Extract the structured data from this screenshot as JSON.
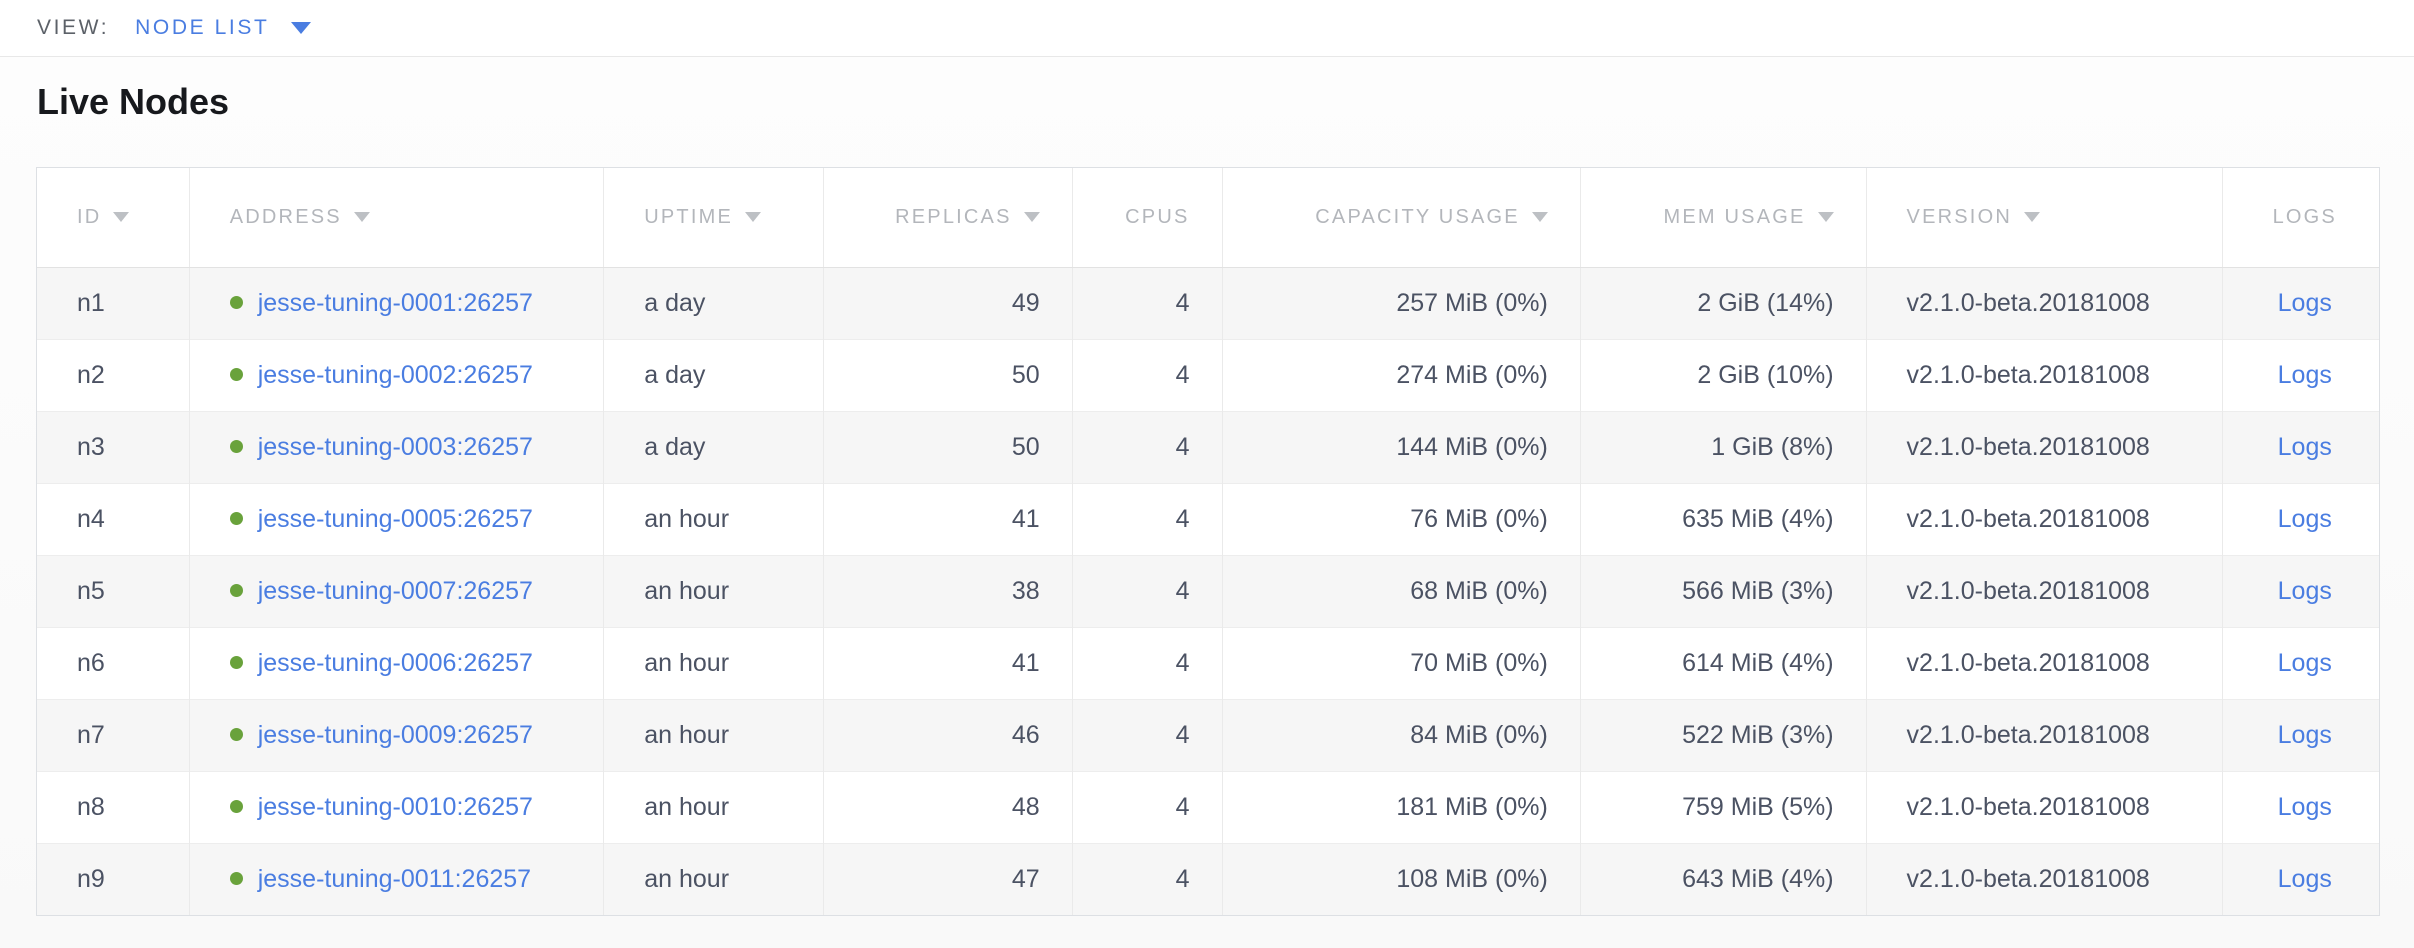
{
  "colors": {
    "accent_blue": "#4a7de1",
    "live_green": "#69a23b"
  },
  "view_bar": {
    "label": "VIEW:",
    "selected": "NODE LIST"
  },
  "page": {
    "title": "Live Nodes"
  },
  "table": {
    "columns": [
      {
        "key": "id",
        "label": "ID",
        "sortable": true,
        "align": "left"
      },
      {
        "key": "address",
        "label": "ADDRESS",
        "sortable": true,
        "align": "left"
      },
      {
        "key": "uptime",
        "label": "UPTIME",
        "sortable": true,
        "align": "left"
      },
      {
        "key": "replicas",
        "label": "REPLICAS",
        "sortable": true,
        "align": "right"
      },
      {
        "key": "cpus",
        "label": "CPUS",
        "sortable": false,
        "align": "right"
      },
      {
        "key": "capacity",
        "label": "CAPACITY USAGE",
        "sortable": true,
        "align": "right"
      },
      {
        "key": "mem",
        "label": "MEM USAGE",
        "sortable": true,
        "align": "right"
      },
      {
        "key": "version",
        "label": "VERSION",
        "sortable": true,
        "align": "left"
      },
      {
        "key": "logs",
        "label": "LOGS",
        "sortable": false,
        "align": "center"
      }
    ],
    "rows": [
      {
        "id": "n1",
        "status": "live",
        "address": "jesse-tuning-0001:26257",
        "uptime": "a day",
        "replicas": "49",
        "cpus": "4",
        "capacity": "257 MiB (0%)",
        "mem": "2 GiB (14%)",
        "version": "v2.1.0-beta.20181008",
        "logs": "Logs"
      },
      {
        "id": "n2",
        "status": "live",
        "address": "jesse-tuning-0002:26257",
        "uptime": "a day",
        "replicas": "50",
        "cpus": "4",
        "capacity": "274 MiB (0%)",
        "mem": "2 GiB (10%)",
        "version": "v2.1.0-beta.20181008",
        "logs": "Logs"
      },
      {
        "id": "n3",
        "status": "live",
        "address": "jesse-tuning-0003:26257",
        "uptime": "a day",
        "replicas": "50",
        "cpus": "4",
        "capacity": "144 MiB (0%)",
        "mem": "1 GiB (8%)",
        "version": "v2.1.0-beta.20181008",
        "logs": "Logs"
      },
      {
        "id": "n4",
        "status": "live",
        "address": "jesse-tuning-0005:26257",
        "uptime": "an hour",
        "replicas": "41",
        "cpus": "4",
        "capacity": "76 MiB (0%)",
        "mem": "635 MiB (4%)",
        "version": "v2.1.0-beta.20181008",
        "logs": "Logs"
      },
      {
        "id": "n5",
        "status": "live",
        "address": "jesse-tuning-0007:26257",
        "uptime": "an hour",
        "replicas": "38",
        "cpus": "4",
        "capacity": "68 MiB (0%)",
        "mem": "566 MiB (3%)",
        "version": "v2.1.0-beta.20181008",
        "logs": "Logs"
      },
      {
        "id": "n6",
        "status": "live",
        "address": "jesse-tuning-0006:26257",
        "uptime": "an hour",
        "replicas": "41",
        "cpus": "4",
        "capacity": "70 MiB (0%)",
        "mem": "614 MiB (4%)",
        "version": "v2.1.0-beta.20181008",
        "logs": "Logs"
      },
      {
        "id": "n7",
        "status": "live",
        "address": "jesse-tuning-0009:26257",
        "uptime": "an hour",
        "replicas": "46",
        "cpus": "4",
        "capacity": "84 MiB (0%)",
        "mem": "522 MiB (3%)",
        "version": "v2.1.0-beta.20181008",
        "logs": "Logs"
      },
      {
        "id": "n8",
        "status": "live",
        "address": "jesse-tuning-0010:26257",
        "uptime": "an hour",
        "replicas": "48",
        "cpus": "4",
        "capacity": "181 MiB (0%)",
        "mem": "759 MiB (5%)",
        "version": "v2.1.0-beta.20181008",
        "logs": "Logs"
      },
      {
        "id": "n9",
        "status": "live",
        "address": "jesse-tuning-0011:26257",
        "uptime": "an hour",
        "replicas": "47",
        "cpus": "4",
        "capacity": "108 MiB (0%)",
        "mem": "643 MiB (4%)",
        "version": "v2.1.0-beta.20181008",
        "logs": "Logs"
      }
    ]
  }
}
